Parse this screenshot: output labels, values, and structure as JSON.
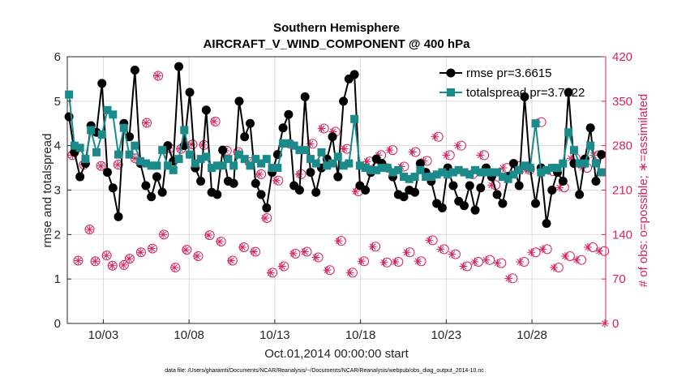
{
  "chart_data": {
    "type": "line",
    "title": "Southern Hemisphere",
    "subtitle": "AIRCRAFT_V_WIND_COMPONENT @ 400 hPa",
    "xlabel": "Oct.01,2014 00:00:00 start",
    "ylabel": "rmse and totalspread",
    "ylabel_right": "# of obs: o=possible; ∗=assimilated",
    "footnote": "data file: /Users/gharamti/Documents/NCAR/Reanalysis/~/Documents/NCAR/Reanalysis/webpub/obs_diag_output_2014-10.nc",
    "xlim": [
      0.9,
      32.3
    ],
    "ylim": [
      0,
      6
    ],
    "ylim_right": [
      0,
      420
    ],
    "xticks": [
      3,
      8,
      13,
      18,
      23,
      28
    ],
    "xtick_labels": [
      "10/03",
      "10/08",
      "10/13",
      "10/18",
      "10/23",
      "10/28"
    ],
    "yticks": [
      0,
      1,
      2,
      3,
      4,
      5,
      6
    ],
    "yticks_right": [
      0,
      70,
      140,
      210,
      280,
      350,
      420
    ],
    "grid": true,
    "legend_location": "top-right",
    "colors": {
      "rmse": "#000000",
      "totalspread": "#1b8a8a",
      "obs": "#d6225e",
      "grid": "#dcdcdc"
    },
    "series": [
      {
        "name": "rmse pr=3.6615",
        "marker": "filled-circle",
        "values": [
          4.65,
          3.85,
          3.3,
          3.6,
          4.45,
          4.3,
          5.4,
          3.4,
          3.05,
          2.4,
          4.5,
          4.2,
          5.7,
          3.6,
          3.1,
          2.85,
          3.3,
          2.95,
          4.0,
          3.65,
          5.78,
          4.0,
          5.2,
          3.5,
          3.2,
          4.8,
          2.95,
          2.9,
          3.9,
          3.2,
          3.15,
          5.0,
          4.2,
          4.5,
          3.15,
          2.9,
          2.6,
          3.4,
          3.8,
          4.4,
          4.7,
          3.1,
          3.0,
          5.1,
          3.4,
          2.95,
          3.5,
          3.7,
          4.2,
          3.3,
          5.0,
          5.5,
          5.6,
          3.1,
          3.0,
          3.4,
          3.7,
          3.6,
          3.5,
          3.3,
          2.9,
          2.85,
          3.0,
          2.95,
          3.6,
          3.4,
          3.2,
          2.7,
          2.6,
          3.5,
          3.1,
          2.75,
          2.65,
          3.1,
          2.55,
          3.05,
          3.5,
          3.3,
          2.9,
          2.7,
          3.3,
          3.6,
          3.1,
          5.1,
          3.5,
          2.7,
          3.5,
          2.25,
          3.0,
          3.4,
          3.2,
          5.2,
          3.6,
          2.9,
          3.7,
          4.4,
          3.2,
          3.8
        ],
        "totalspread_pairing": false
      },
      {
        "name": "totalspread pr=3.7222",
        "marker": "filled-square",
        "values": [
          5.15,
          4.0,
          3.95,
          3.7,
          4.35,
          3.85,
          4.25,
          4.8,
          4.7,
          3.8,
          4.4,
          3.8,
          4.0,
          3.65,
          3.6,
          3.55,
          3.55,
          3.9,
          3.55,
          3.45,
          3.7,
          4.35,
          3.8,
          3.6,
          3.7,
          3.75,
          3.5,
          3.55,
          3.55,
          3.7,
          3.55,
          3.8,
          3.7,
          3.55,
          3.7,
          3.6,
          3.7,
          3.5,
          3.5,
          4.05,
          4.05,
          4.0,
          3.9,
          3.9,
          3.7,
          3.6,
          3.85,
          3.55,
          3.6,
          3.75,
          3.55,
          3.6,
          4.6,
          3.55,
          3.5,
          3.45,
          3.45,
          3.5,
          3.5,
          3.4,
          3.45,
          3.3,
          3.25,
          3.3,
          3.45,
          3.3,
          3.3,
          3.35,
          3.4,
          3.35,
          3.4,
          3.45,
          3.4,
          3.35,
          3.45,
          3.4,
          3.4,
          3.4,
          3.4,
          3.3,
          3.25,
          3.35,
          3.45,
          3.55,
          3.5,
          4.5,
          3.4,
          3.45,
          3.5,
          3.5,
          3.6,
          4.3,
          3.9,
          3.6,
          3.6,
          4.0,
          3.6,
          3.4
        ]
      }
    ],
    "obs_possible": [
      265,
      265,
      99,
      99,
      250,
      250,
      148,
      148,
      98,
      98,
      248,
      248,
      107,
      107,
      91,
      91,
      250,
      250,
      92,
      92,
      102,
      102,
      260,
      260,
      112,
      112,
      316,
      316,
      118,
      118,
      390,
      390,
      140,
      140,
      276,
      276,
      88,
      88,
      275,
      275,
      116,
      116,
      282,
      282,
      106,
      106,
      281,
      281,
      139,
      139,
      318,
      318,
      129,
      129,
      272,
      272,
      99,
      99,
      270,
      270,
      120,
      120,
      254,
      254,
      113,
      113,
      235,
      235,
      166,
      166,
      80,
      80,
      225,
      225,
      90,
      90,
      283,
      283,
      110,
      110,
      235,
      235,
      113,
      113,
      283,
      283,
      104,
      104,
      307,
      307,
      84,
      84,
      302,
      302,
      130,
      130,
      275,
      275,
      80,
      80,
      208,
      208,
      98,
      98,
      255,
      255,
      121,
      121,
      265,
      265,
      96,
      96,
      273,
      273,
      97,
      97,
      247,
      247,
      112,
      112,
      270,
      270,
      98,
      98,
      256,
      256,
      131,
      131,
      294,
      294,
      117,
      117,
      265,
      265,
      109,
      109,
      280,
      280,
      90,
      90,
      235,
      235,
      97,
      97,
      265,
      265,
      100,
      100,
      218,
      218,
      95,
      95,
      245,
      245,
      71,
      71,
      248,
      248,
      97,
      97,
      242,
      242,
      112,
      112,
      317,
      317,
      117,
      117,
      240,
      240,
      88,
      88,
      214,
      214,
      106,
      106,
      260,
      260,
      100,
      100,
      245,
      245,
      120,
      120,
      265,
      265,
      114,
      114,
      0
    ],
    "obs_assimilated": [
      265,
      99,
      250,
      148,
      98,
      248,
      107,
      91,
      250,
      92,
      102,
      260,
      112,
      316,
      118,
      390,
      140,
      276,
      88,
      275,
      116,
      282,
      106,
      281,
      139,
      318,
      129,
      272,
      99,
      270,
      120,
      254,
      113,
      235,
      166,
      80,
      225,
      90,
      283,
      110,
      235,
      113,
      283,
      104,
      307,
      84,
      302,
      130,
      275,
      80,
      208,
      98,
      255,
      121,
      265,
      96,
      273,
      97,
      247,
      112,
      270,
      98,
      256,
      131,
      294,
      117,
      265,
      109,
      280,
      90,
      235,
      97,
      265,
      100,
      218,
      95,
      245,
      71,
      248,
      97,
      242,
      112,
      317,
      117,
      240,
      88,
      214,
      106,
      260,
      100,
      245,
      120,
      265,
      114,
      0
    ]
  }
}
